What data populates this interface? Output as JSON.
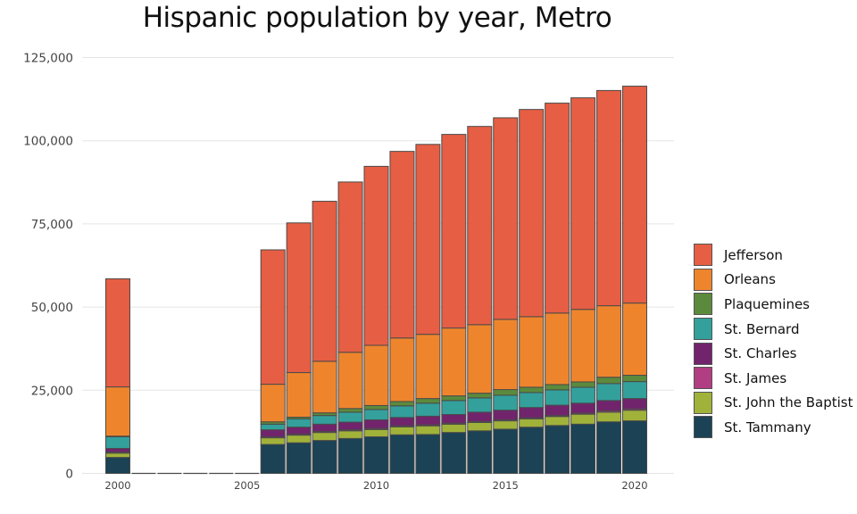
{
  "chart_data": {
    "type": "bar",
    "stacked": true,
    "title": "Hispanic population by year, Metro",
    "xlabel": "",
    "ylabel": "",
    "ylim": [
      0,
      125000
    ],
    "yticks": [
      0,
      25000,
      50000,
      75000,
      100000,
      125000
    ],
    "ytick_labels": [
      "0",
      "25,000",
      "50,000",
      "75,000",
      "100,000",
      "125,000"
    ],
    "xticks": [
      2000,
      2005,
      2010,
      2015,
      2020
    ],
    "xtick_labels": [
      "2000",
      "2005",
      "2010",
      "2015",
      "2020"
    ],
    "grid": true,
    "legend_position": "right",
    "categories": [
      2000,
      2001,
      2002,
      2003,
      2004,
      2005,
      2006,
      2007,
      2008,
      2009,
      2010,
      2011,
      2012,
      2013,
      2014,
      2015,
      2016,
      2017,
      2018,
      2019,
      2020
    ],
    "series": [
      {
        "name": "St. Tammany",
        "color": "#1b4255",
        "values": [
          4800,
          0,
          0,
          0,
          0,
          0,
          8700,
          9200,
          9900,
          10500,
          11000,
          11600,
          11700,
          12300,
          12800,
          13300,
          13900,
          14400,
          14800,
          15500,
          15800
        ]
      },
      {
        "name": "St. John the Baptist",
        "color": "#a1b23a",
        "values": [
          1300,
          0,
          0,
          0,
          0,
          0,
          2000,
          2300,
          2400,
          2300,
          2200,
          2400,
          2600,
          2500,
          2500,
          2500,
          2500,
          2700,
          3000,
          2900,
          3200
        ]
      },
      {
        "name": "St. James",
        "color": "#b13d82",
        "values": [
          300,
          0,
          0,
          0,
          0,
          0,
          300,
          300,
          300,
          300,
          300,
          300,
          300,
          300,
          300,
          300,
          300,
          300,
          300,
          400,
          400
        ]
      },
      {
        "name": "St. Charles",
        "color": "#71246c",
        "values": [
          1100,
          0,
          0,
          0,
          0,
          0,
          2100,
          2100,
          2200,
          2300,
          2600,
          2500,
          2600,
          2600,
          2800,
          2900,
          3100,
          3100,
          3000,
          3100,
          3100
        ]
      },
      {
        "name": "St. Bernard",
        "color": "#33a09c",
        "values": [
          3500,
          0,
          0,
          0,
          0,
          0,
          1700,
          2500,
          2600,
          3000,
          3100,
          3500,
          3900,
          4200,
          4300,
          4500,
          4500,
          4600,
          4800,
          5100,
          5100
        ]
      },
      {
        "name": "Plaquemines",
        "color": "#5b8a3c",
        "values": [
          200,
          0,
          0,
          0,
          0,
          0,
          700,
          500,
          800,
          1100,
          1200,
          1300,
          1400,
          1400,
          1400,
          1700,
          1600,
          1600,
          1600,
          1900,
          1900
        ]
      },
      {
        "name": "Orleans",
        "color": "#ee852d",
        "values": [
          14800,
          0,
          0,
          0,
          0,
          0,
          11300,
          13400,
          15500,
          16900,
          18100,
          19100,
          19300,
          20400,
          20600,
          21100,
          21200,
          21500,
          21800,
          21500,
          21700
        ]
      },
      {
        "name": "Jefferson",
        "color": "#e65e43",
        "values": [
          32500,
          0,
          0,
          0,
          0,
          0,
          40400,
          45000,
          48100,
          51200,
          53800,
          56100,
          57100,
          58200,
          59600,
          60600,
          62300,
          63100,
          63600,
          64700,
          65200
        ]
      }
    ],
    "legend": [
      {
        "name": "Jefferson",
        "color": "#e65e43"
      },
      {
        "name": "Orleans",
        "color": "#ee852d"
      },
      {
        "name": "Plaquemines",
        "color": "#5b8a3c"
      },
      {
        "name": "St. Bernard",
        "color": "#33a09c"
      },
      {
        "name": "St. Charles",
        "color": "#71246c"
      },
      {
        "name": "St. James",
        "color": "#b13d82"
      },
      {
        "name": "St. John the Baptist",
        "color": "#a1b23a"
      },
      {
        "name": "St. Tammany",
        "color": "#1b4255"
      }
    ]
  }
}
